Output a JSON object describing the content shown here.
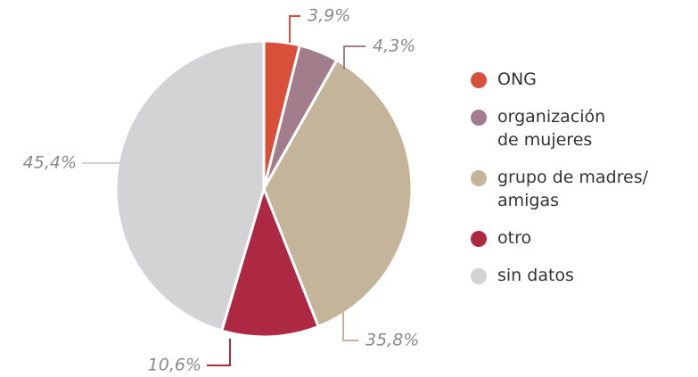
{
  "chart_data": {
    "type": "pie",
    "categories": [
      "ONG",
      "organización de mujeres",
      "grupo de madres/ amigas",
      "otro",
      "sin datos"
    ],
    "values": [
      3.9,
      4.3,
      35.8,
      10.6,
      45.4
    ],
    "value_labels": [
      "3,9%",
      "4,3%",
      "35,8%",
      "10,6%",
      "45,4%"
    ],
    "colors": [
      "#d9503a",
      "#a27d8c",
      "#c4b49a",
      "#ad2842",
      "#d3d3d6"
    ],
    "legend": "right"
  }
}
